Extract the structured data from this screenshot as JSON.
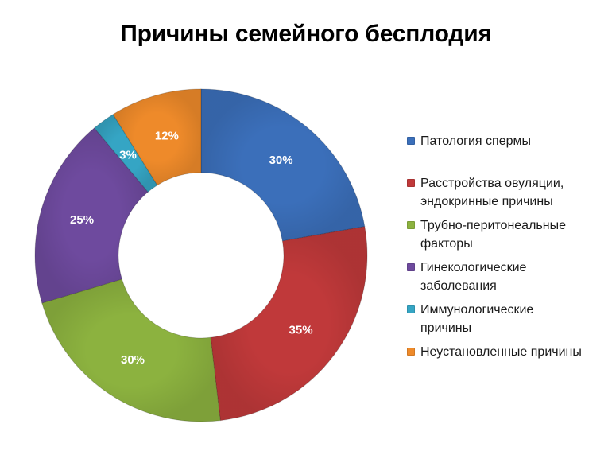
{
  "title": "Причины семейного бесплодия",
  "chart_data": {
    "type": "pie",
    "variant": "donut",
    "title": "Причины семейного бесплодия",
    "categories": [
      "Патология спермы",
      "Расстройства овуляции, эндокринные причины",
      "Трубно-перитонеальные факторы",
      "Гинекологические заболевания",
      "Иммунологические причины",
      "Неустановленные причины"
    ],
    "values": [
      30,
      35,
      30,
      25,
      3,
      12
    ],
    "data_labels": [
      "30%",
      "35%",
      "30%",
      "25%",
      "3%",
      "12%"
    ],
    "colors": [
      "#3b6fba",
      "#c0393a",
      "#8cb23f",
      "#6e4a9e",
      "#35a5c4",
      "#ee8a2a"
    ],
    "legend_position": "right",
    "start_angle_deg": 0,
    "direction": "clockwise"
  },
  "legend": [
    {
      "label": "Патология спермы",
      "color": "#3b6fba"
    },
    {
      "label": "Расстройства овуляции,\nэндокринные причины",
      "color": "#c0393a"
    },
    {
      "label": "Трубно-перитонеальные\nфакторы",
      "color": "#8cb23f"
    },
    {
      "label": "Гинекологические\nзаболевания",
      "color": "#6e4a9e"
    },
    {
      "label": "Иммунологические\nпричины",
      "color": "#35a5c4"
    },
    {
      "label": "Неустановленные причины",
      "color": "#ee8a2a"
    }
  ]
}
